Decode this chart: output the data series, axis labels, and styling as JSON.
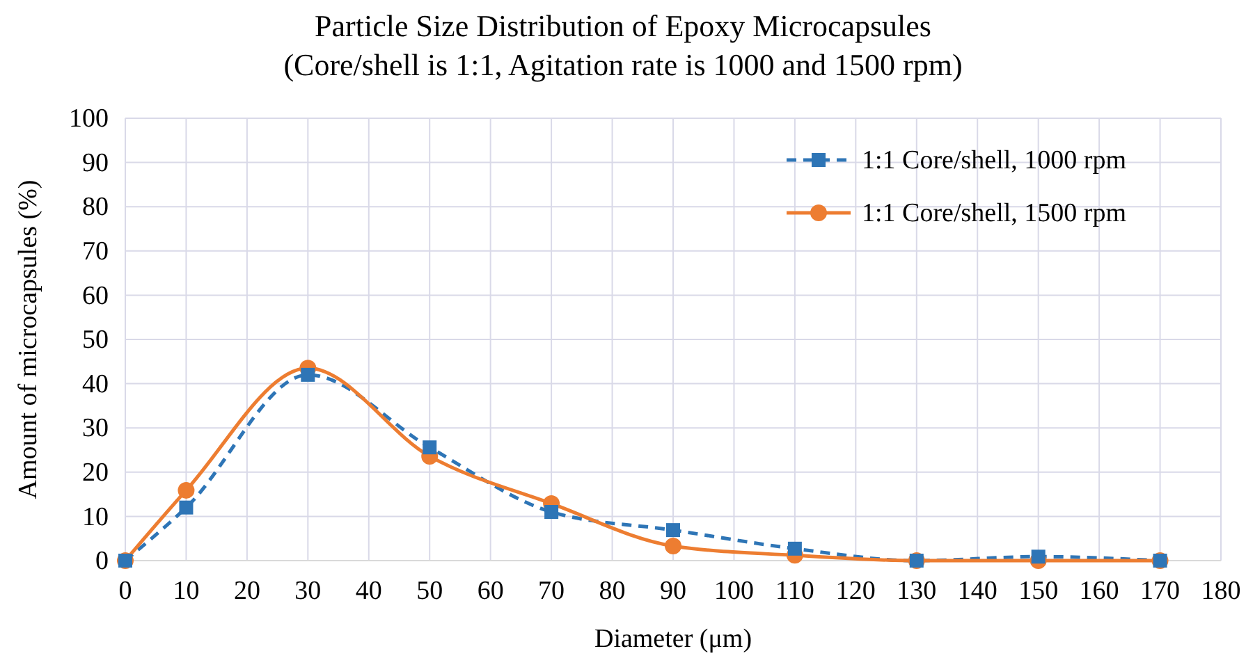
{
  "chart_data": {
    "type": "line",
    "title": "Particle Size Distribution  of Epoxy Microcapsules",
    "subtitle": "(Core/shell is 1:1, Agitation  rate is 1000 and 1500 rpm)",
    "xlabel": "Diameter (μm)",
    "ylabel": "Amount of microcapsules (%)",
    "x": [
      0,
      10,
      30,
      50,
      70,
      90,
      110,
      130,
      150,
      170
    ],
    "series": [
      {
        "name": "1:1 Core/shell, 1000 rpm",
        "color": "#2e75b6",
        "marker": "square",
        "line_style": "dashed",
        "values": [
          0,
          12,
          42,
          25.6,
          11,
          6.9,
          2.7,
          0,
          0.9,
          0
        ]
      },
      {
        "name": "1:1 Core/shell, 1500 rpm",
        "color": "#ed7d31",
        "marker": "circle",
        "line_style": "solid",
        "values": [
          0,
          15.9,
          43.5,
          23.6,
          12.9,
          3.3,
          1.2,
          0,
          0,
          0
        ]
      }
    ],
    "xlim": [
      0,
      180
    ],
    "xticks": [
      0,
      10,
      20,
      30,
      40,
      50,
      60,
      70,
      80,
      90,
      100,
      110,
      120,
      130,
      140,
      150,
      160,
      170,
      180
    ],
    "ylim": [
      0,
      100
    ],
    "yticks": [
      0,
      10,
      20,
      30,
      40,
      50,
      60,
      70,
      80,
      90,
      100
    ],
    "grid": true,
    "legend": "top right"
  }
}
